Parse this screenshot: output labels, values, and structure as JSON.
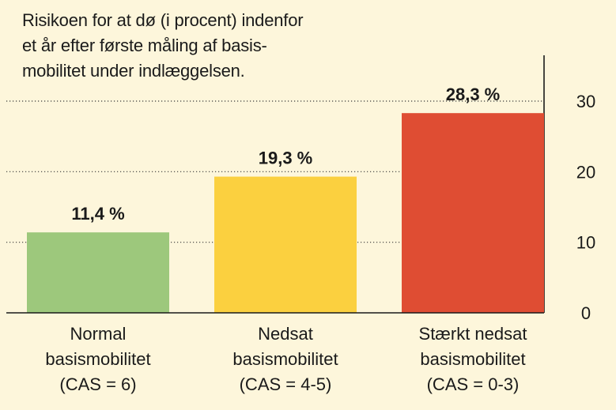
{
  "chart_data": {
    "type": "bar",
    "title_lines": [
      "Risikoen for at dø (i procent) indenfor",
      "et år efter første måling af basis-",
      "mobilitet under indlæggelsen."
    ],
    "categories": [
      [
        "Normal",
        "basismobilitet",
        "(CAS = 6)"
      ],
      [
        "Nedsat",
        "basismobilitet",
        "(CAS = 4-5)"
      ],
      [
        "Stærkt nedsat",
        "basismobilitet",
        "(CAS = 0-3)"
      ]
    ],
    "values": [
      11.4,
      19.3,
      28.3
    ],
    "value_labels": [
      "11,4 %",
      "19,3 %",
      "28,3 %"
    ],
    "colors": [
      "#9dc87c",
      "#fbd03f",
      "#df4d33"
    ],
    "ylim": [
      0,
      30
    ],
    "yticks": [
      0,
      10,
      20,
      30
    ],
    "ytick_labels": [
      "0",
      "10",
      "20",
      "30"
    ],
    "grid": "dotted horizontal",
    "axis_position": "right"
  }
}
